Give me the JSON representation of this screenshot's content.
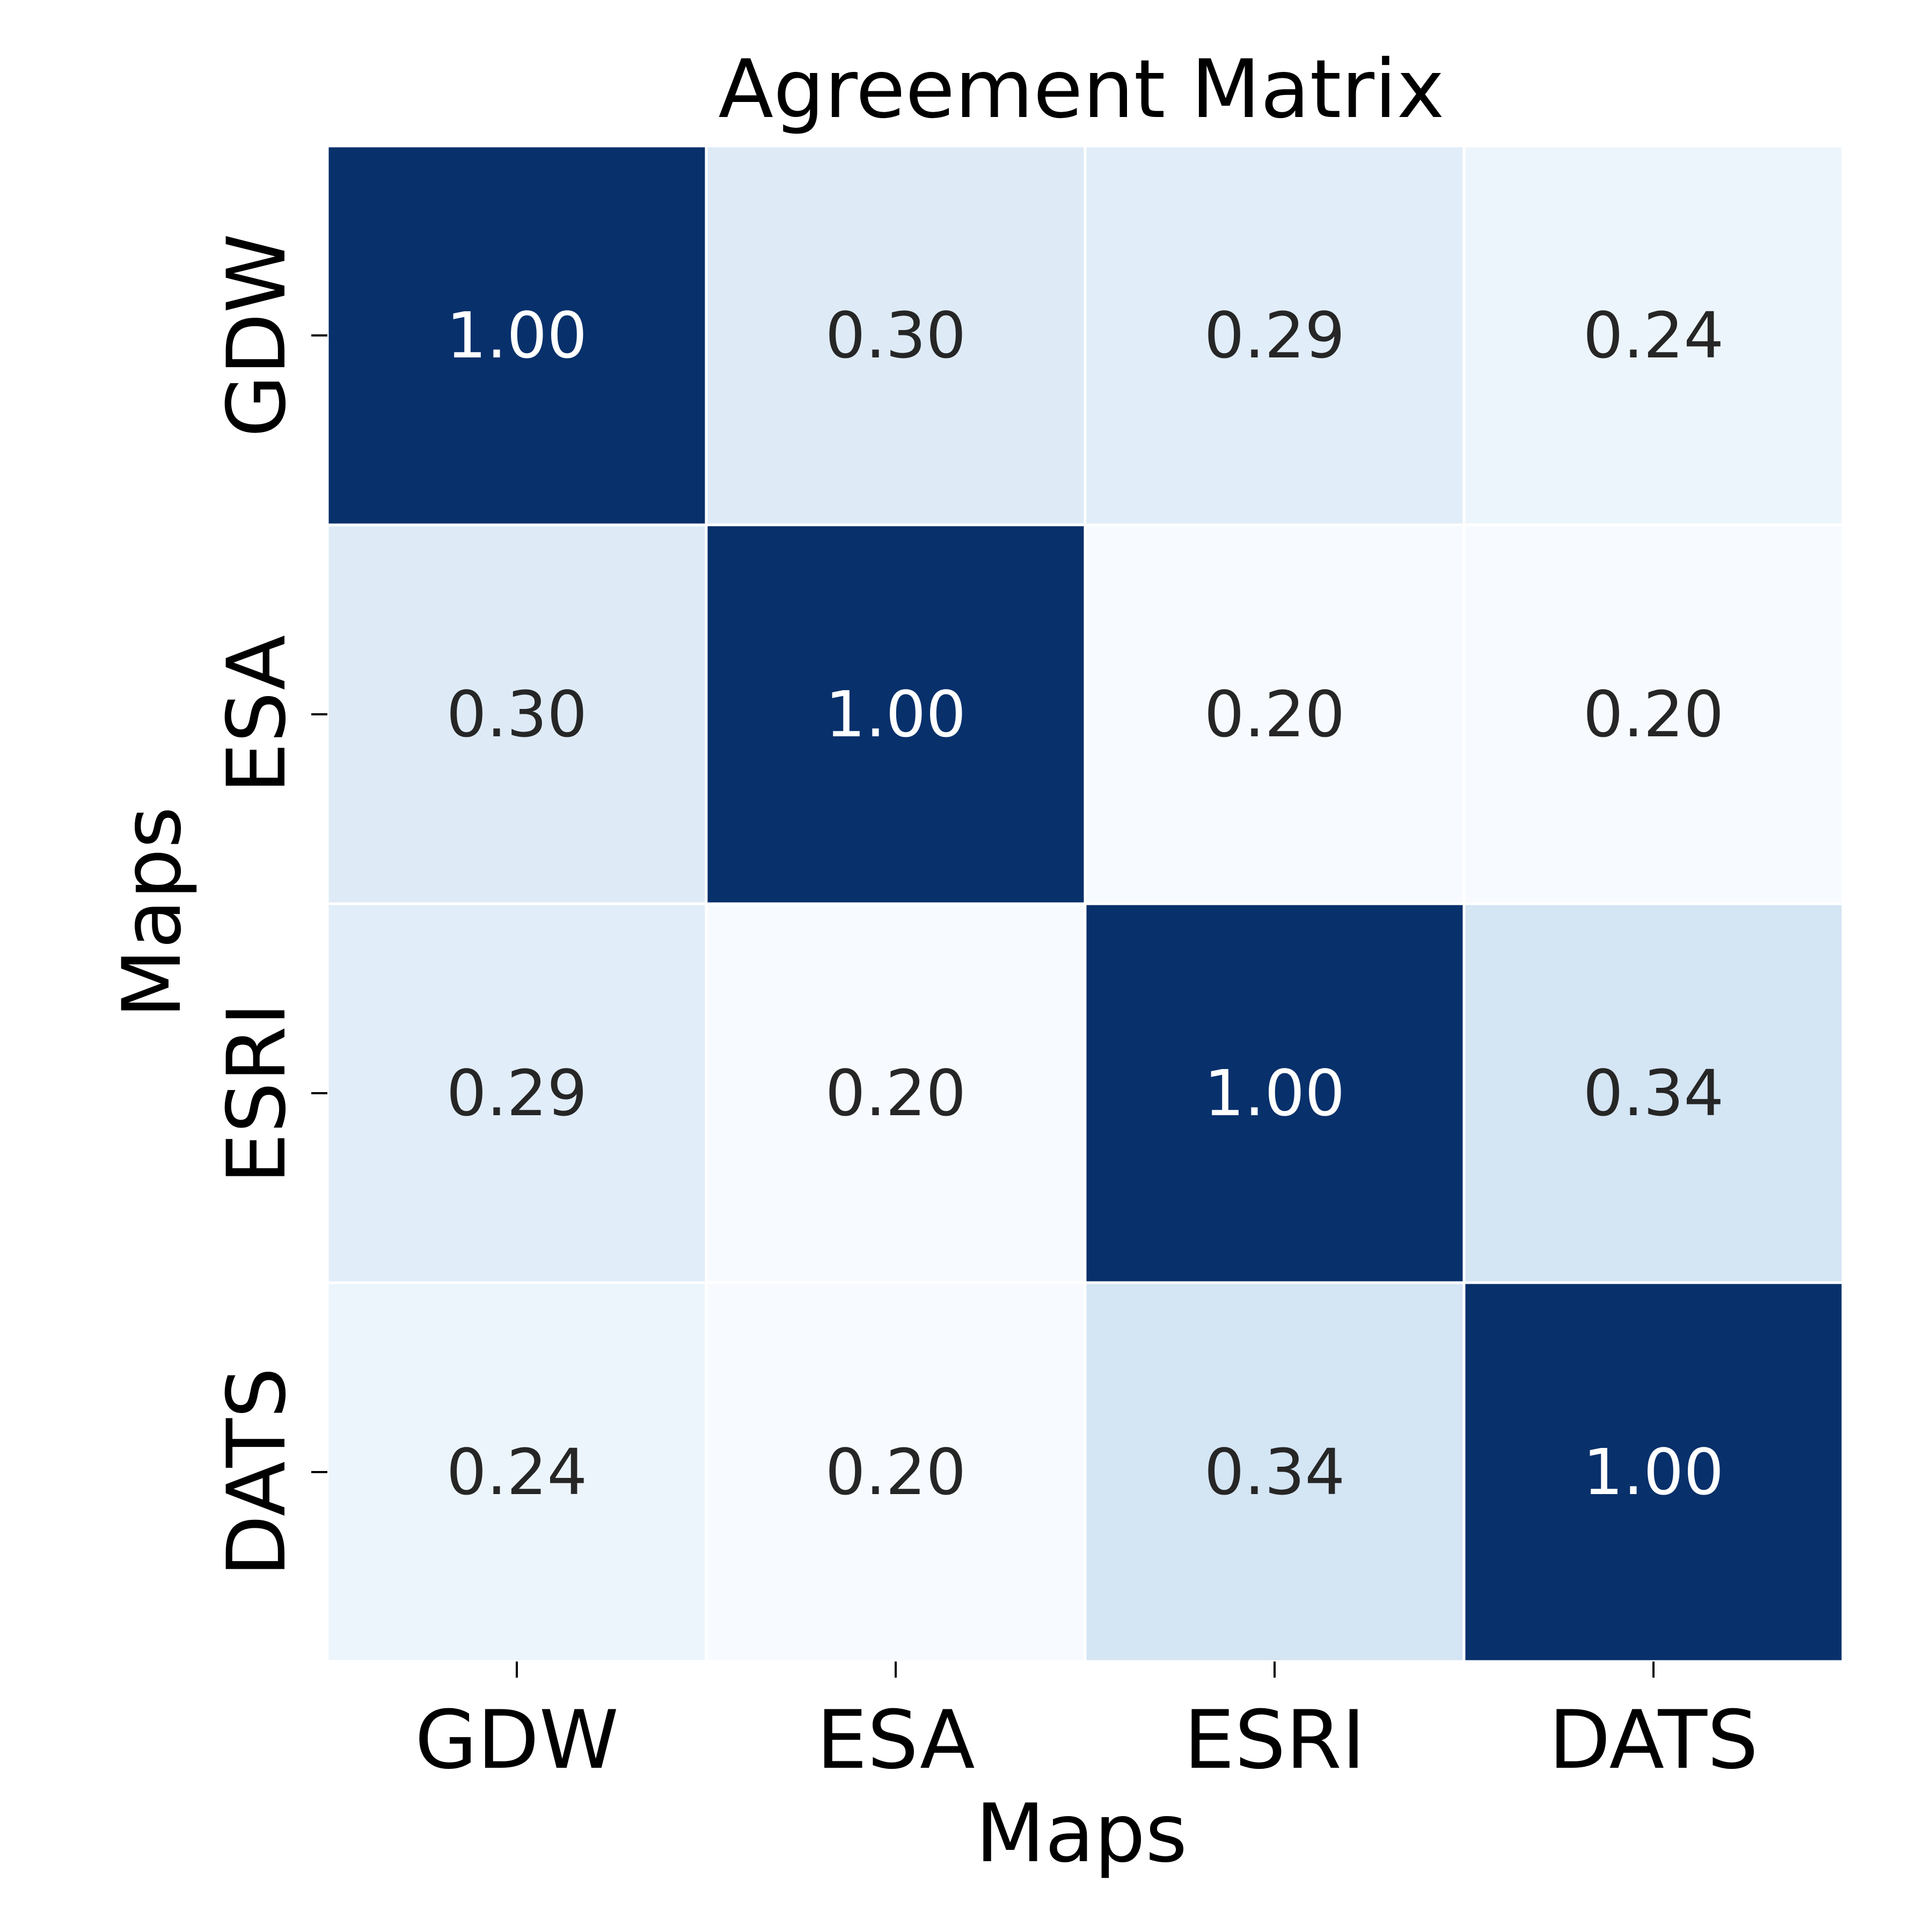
{
  "chart_data": {
    "type": "heatmap",
    "title": "Agreement Matrix",
    "xlabel": "Maps",
    "ylabel": "Maps",
    "x_categories": [
      "GDW",
      "ESA",
      "ESRI",
      "DATS"
    ],
    "y_categories": [
      "GDW",
      "ESA",
      "ESRI",
      "DATS"
    ],
    "values": [
      [
        1.0,
        0.3,
        0.29,
        0.24
      ],
      [
        0.3,
        1.0,
        0.2,
        0.2
      ],
      [
        0.29,
        0.2,
        1.0,
        0.34
      ],
      [
        0.24,
        0.2,
        0.34,
        1.0
      ]
    ],
    "cell_labels": [
      [
        "1.00",
        "0.30",
        "0.29",
        "0.24"
      ],
      [
        "0.30",
        "1.00",
        "0.20",
        "0.20"
      ],
      [
        "0.29",
        "0.20",
        "1.00",
        "0.34"
      ],
      [
        "0.24",
        "0.20",
        "0.34",
        "1.00"
      ]
    ],
    "colormap": "Blues",
    "colorbar": false,
    "colors": {
      "high": "#08306b",
      "low": "#f7fbff",
      "text_dark": "#262626",
      "text_light": "#ffffff"
    }
  }
}
